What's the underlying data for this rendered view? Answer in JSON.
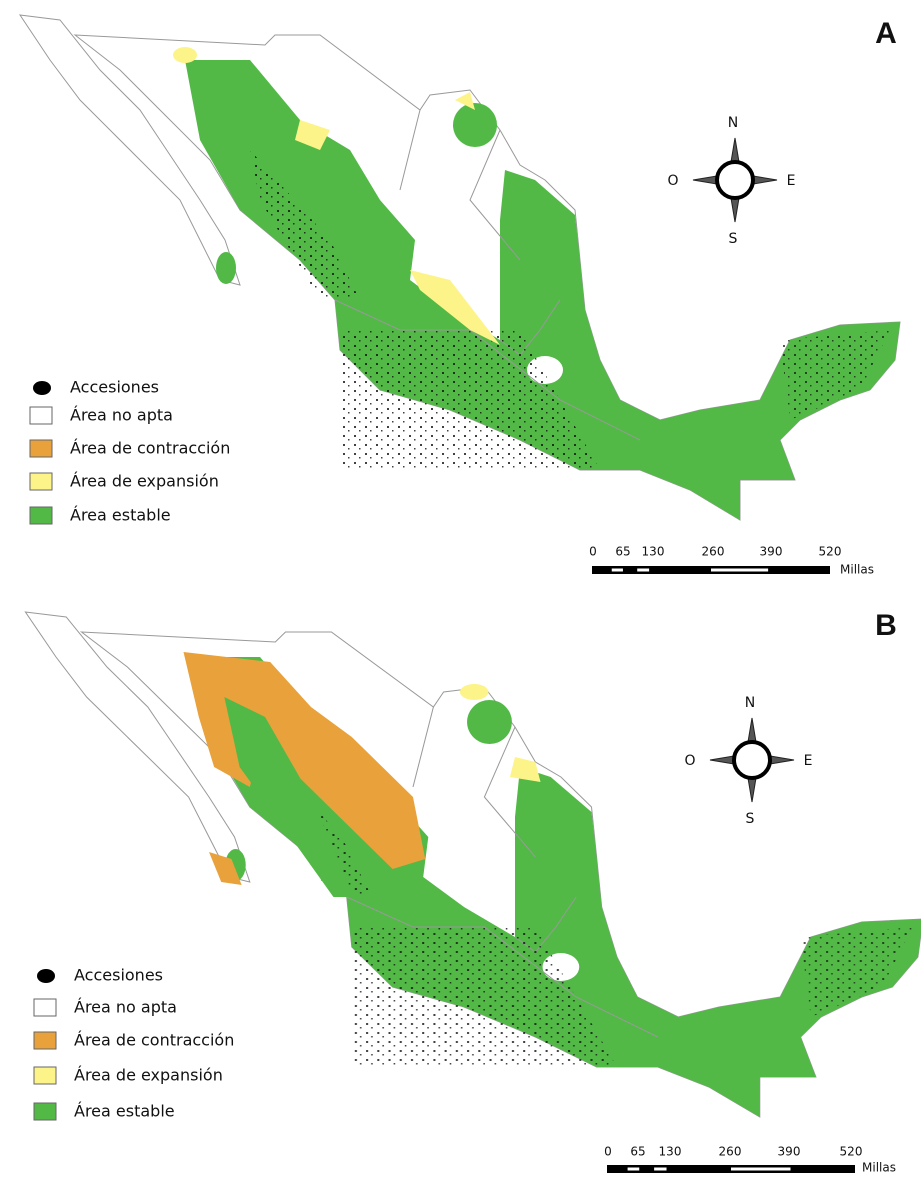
{
  "figure": {
    "panels": [
      {
        "label": "A",
        "legend": [
          "Accesiones",
          "Área no apta",
          "Área de contracción",
          "Área de expansión",
          "Área estable"
        ],
        "compass": {
          "north": "N",
          "west": "O",
          "east": "E",
          "south": "S"
        },
        "scale_bar": {
          "ticks": [
            0,
            65,
            130,
            260,
            390,
            520
          ],
          "unit": "Millas"
        }
      },
      {
        "label": "B",
        "legend": [
          "Accesiones",
          "Área no apta",
          "Área de contracción",
          "Área de expansión",
          "Área estable"
        ],
        "compass": {
          "north": "N",
          "west": "O",
          "east": "E",
          "south": "S"
        },
        "scale_bar": {
          "ticks": [
            0,
            65,
            130,
            260,
            390,
            520
          ],
          "unit": "Millas"
        }
      }
    ]
  }
}
